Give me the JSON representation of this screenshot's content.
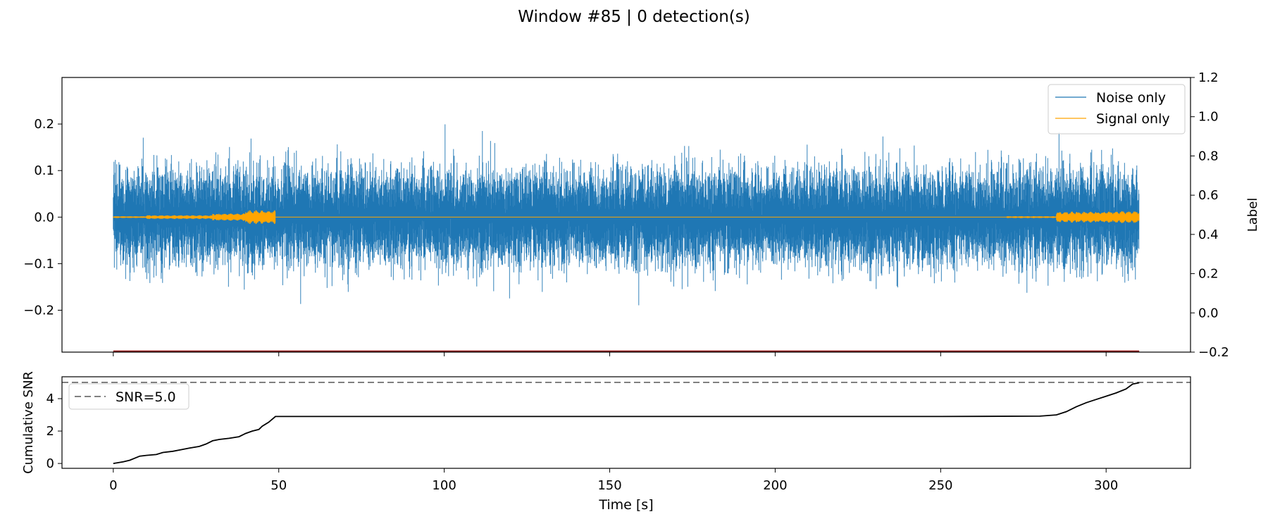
{
  "figure": {
    "suptitle": "Window #85 | 0 detection(s)"
  },
  "colors": {
    "noise": "#1f77b4",
    "signal": "#ffa500",
    "label_line": "#8b0000",
    "cumulative": "#000000",
    "threshold": "#808080"
  },
  "chart_data": [
    {
      "type": "line",
      "name": "waveform",
      "xlim": [
        -15.5,
        325.5
      ],
      "ylim": [
        -0.29,
        0.3
      ],
      "y_ticks": [
        -0.2,
        -0.1,
        0.0,
        0.1,
        0.2
      ],
      "y_tick_labels": [
        "−0.2",
        "−0.1",
        "0.0",
        "0.1",
        "0.2"
      ],
      "x_ticks": [
        0,
        50,
        100,
        150,
        200,
        250,
        300
      ],
      "twin_ylabel": "Label",
      "twin_ylim": [
        -0.2,
        1.2
      ],
      "twin_y_ticks": [
        -0.2,
        0.0,
        0.2,
        0.4,
        0.6,
        0.8,
        1.0,
        1.2
      ],
      "twin_y_tick_labels": [
        "−0.2",
        "0.0",
        "0.2",
        "0.4",
        "0.6",
        "0.8",
        "1.0",
        "1.2"
      ],
      "legend_position": "upper-right",
      "grid": false,
      "series": [
        {
          "name": "Noise only",
          "kind": "noise-band",
          "x_range": [
            0,
            310
          ],
          "typical_abs_amplitude": 0.1,
          "min": -0.27,
          "max": 0.27
        },
        {
          "name": "Signal only",
          "kind": "bursts",
          "bursts": [
            {
              "x": [
                0,
                10
              ],
              "amplitude": 0.002
            },
            {
              "x": [
                10,
                30
              ],
              "amplitude": 0.004
            },
            {
              "x": [
                30,
                40
              ],
              "amplitude": 0.008
            },
            {
              "x": [
                40,
                49
              ],
              "amplitude": 0.015
            },
            {
              "x": [
                270,
                285
              ],
              "amplitude": 0.002
            },
            {
              "x": [
                285,
                300
              ],
              "amplitude": 0.012
            },
            {
              "x": [
                300,
                310
              ],
              "amplitude": 0.013
            }
          ]
        },
        {
          "name": "label",
          "twin_axis": true,
          "x": [
            0,
            310
          ],
          "y": [
            -0.2,
            -0.2
          ]
        }
      ]
    },
    {
      "type": "line",
      "name": "cumulative-snr",
      "ylabel": "Cumulative SNR",
      "xlabel": "Time [s]",
      "xlim": [
        -15.5,
        325.5
      ],
      "ylim": [
        -0.3,
        5.35
      ],
      "y_ticks": [
        0,
        2,
        4
      ],
      "x_ticks": [
        0,
        50,
        100,
        150,
        200,
        250,
        300
      ],
      "legend_position": "upper-left",
      "grid": false,
      "threshold": {
        "name": "SNR=5.0",
        "y": 5.0
      },
      "series": [
        {
          "name": "cumulative",
          "x": [
            0,
            3,
            5,
            8,
            10,
            13,
            15,
            18,
            20,
            23,
            26,
            28,
            30,
            32,
            35,
            38,
            40,
            42,
            44,
            45,
            47,
            49,
            50,
            100,
            150,
            200,
            250,
            280,
            285,
            288,
            291,
            294,
            297,
            300,
            303,
            306,
            308,
            310
          ],
          "y": [
            0.0,
            0.1,
            0.2,
            0.45,
            0.5,
            0.55,
            0.68,
            0.75,
            0.83,
            0.95,
            1.05,
            1.2,
            1.4,
            1.48,
            1.55,
            1.65,
            1.85,
            2.0,
            2.1,
            2.3,
            2.55,
            2.9,
            2.9,
            2.9,
            2.9,
            2.9,
            2.9,
            2.92,
            3.0,
            3.2,
            3.5,
            3.75,
            3.95,
            4.15,
            4.35,
            4.6,
            4.9,
            4.98
          ]
        }
      ]
    }
  ]
}
